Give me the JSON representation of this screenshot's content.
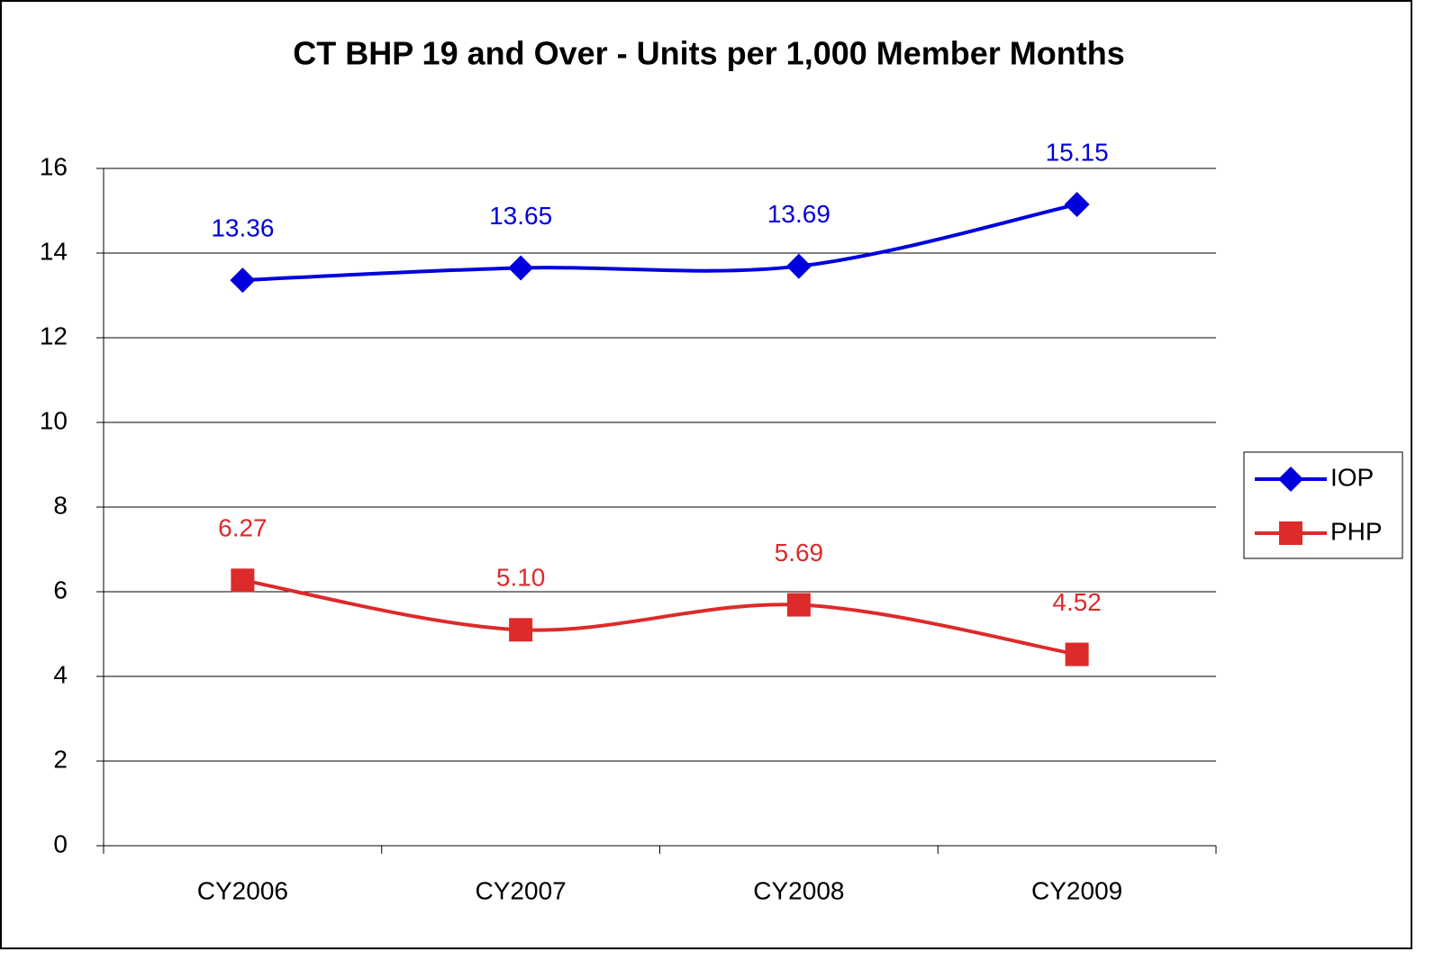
{
  "chart_data": {
    "type": "line",
    "title": "CT BHP 19 and Over - Units per 1,000 Member Months",
    "categories": [
      "CY2006",
      "CY2007",
      "CY2008",
      "CY2009"
    ],
    "series": [
      {
        "name": "IOP",
        "color": "#0000dd",
        "marker": "diamond",
        "values": [
          13.36,
          13.65,
          13.69,
          15.15
        ],
        "value_labels": [
          "13.36",
          "13.65",
          "13.69",
          "15.15"
        ]
      },
      {
        "name": "PHP",
        "color": "#dd2a2a",
        "marker": "square",
        "values": [
          6.27,
          5.1,
          5.69,
          4.52
        ],
        "value_labels": [
          "6.27",
          "5.10",
          "5.69",
          "4.52"
        ]
      }
    ],
    "ylim": [
      0,
      16
    ],
    "yticks": [
      0,
      2,
      4,
      6,
      8,
      10,
      12,
      14,
      16
    ],
    "grid": true,
    "smooth": true,
    "legend": "right"
  }
}
